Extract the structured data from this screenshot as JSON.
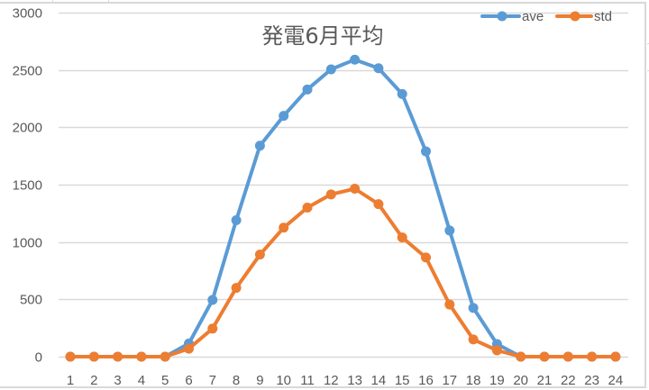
{
  "chart_data": {
    "type": "line",
    "title": "発電6月平均",
    "xlabel": "",
    "ylabel": "",
    "categories": [
      "1",
      "2",
      "3",
      "4",
      "5",
      "6",
      "7",
      "8",
      "9",
      "10",
      "11",
      "12",
      "13",
      "14",
      "15",
      "16",
      "17",
      "18",
      "19",
      "20",
      "21",
      "22",
      "23",
      "24"
    ],
    "series": [
      {
        "name": "ave",
        "color": "#5B9BD5",
        "values": [
          0,
          0,
          0,
          0,
          0,
          115,
          495,
          1190,
          1840,
          2100,
          2330,
          2505,
          2590,
          2515,
          2290,
          1790,
          1100,
          425,
          110,
          0,
          0,
          0,
          0,
          0
        ]
      },
      {
        "name": "std",
        "color": "#ED7D31",
        "values": [
          0,
          0,
          0,
          0,
          0,
          70,
          245,
          600,
          890,
          1125,
          1300,
          1415,
          1465,
          1330,
          1040,
          865,
          455,
          150,
          55,
          0,
          0,
          0,
          0,
          0
        ]
      }
    ],
    "ylim": [
      0,
      3000
    ],
    "yticks": [
      "0",
      "500",
      "1000",
      "1500",
      "2000",
      "2500",
      "3000"
    ],
    "grid": true,
    "legend_position": "top-right",
    "markers": true
  },
  "colors": {
    "gridline": "#d9d9d9",
    "axis_text": "#595959",
    "title_text": "#595959"
  }
}
